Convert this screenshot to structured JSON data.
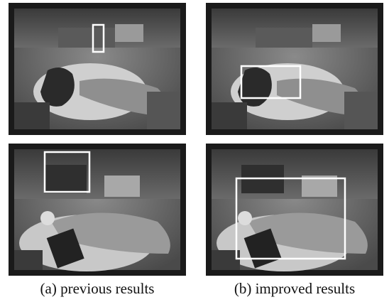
{
  "figure": {
    "captions": [
      "(a) previous results",
      "(b) improved results"
    ]
  }
}
